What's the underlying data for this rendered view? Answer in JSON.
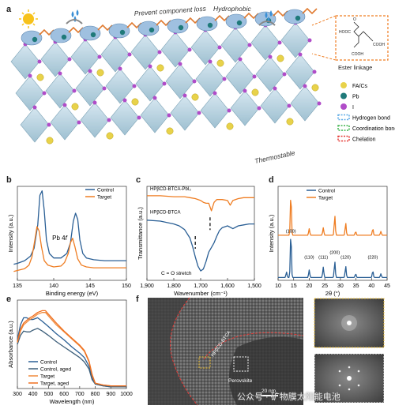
{
  "panels": {
    "a": {
      "letter": "a",
      "labels": {
        "prevent": "Prevent component loss",
        "hydrophobic": "Hydrophobic",
        "thermostable": "Thermostable"
      },
      "inset": {
        "title": "Ester linkage",
        "groups": [
          "HOOC",
          "COOH",
          "COOH",
          "O"
        ]
      },
      "legend": [
        {
          "label": "FA/Cs",
          "color": "#e8d24a"
        },
        {
          "label": "Pb",
          "color": "#1f7a7a"
        },
        {
          "label": "I",
          "color": "#b04cc8"
        },
        {
          "label": "Hydrogen bond",
          "color": "#5aa9e6"
        },
        {
          "label": "Coordination bond",
          "color": "#3cb44b"
        },
        {
          "label": "Chelation",
          "color": "#e53935"
        }
      ]
    },
    "b": {
      "letter": "b",
      "annotation": "Pb 4",
      "annotation_sub": "f"
    },
    "c": {
      "letter": "c",
      "annotation": "C = O stretch"
    },
    "d": {
      "letter": "d"
    },
    "e": {
      "letter": "e"
    },
    "f": {
      "letter": "f",
      "labels": {
        "molecule": "HPβCD-BTCA",
        "perovskite": "Perovskite",
        "scale": "20 nm"
      }
    }
  },
  "watermark": {
    "text": "公众号 · 矿物膜太阳能电池",
    "highlight": "能电池"
  },
  "chart_data": [
    {
      "panel": "b",
      "type": "line",
      "xlabel": "Binding energy (eV)",
      "ylabel": "Intensity (a.u.)",
      "xlim": [
        135,
        150
      ],
      "xticks": [
        135,
        140,
        145,
        150
      ],
      "reversed_x": false,
      "legend_position": "top-right",
      "series": [
        {
          "name": "Control",
          "color": "#2a5f95",
          "x": [
            134.5,
            135,
            136,
            136.8,
            137.3,
            137.8,
            138.1,
            138.4,
            138.7,
            139,
            139.4,
            140,
            141,
            141.8,
            142.3,
            142.7,
            143,
            143.3,
            143.6,
            144,
            144.5,
            145.5,
            147,
            148.5,
            150
          ],
          "y": [
            0.18,
            0.19,
            0.22,
            0.27,
            0.36,
            0.62,
            0.95,
            1.0,
            0.78,
            0.45,
            0.3,
            0.25,
            0.25,
            0.3,
            0.42,
            0.66,
            0.75,
            0.68,
            0.45,
            0.3,
            0.25,
            0.23,
            0.22,
            0.22,
            0.22
          ]
        },
        {
          "name": "Target",
          "color": "#ef7d22",
          "x": [
            134.5,
            135,
            136,
            136.6,
            137,
            137.4,
            137.7,
            138,
            138.3,
            138.7,
            139.2,
            140,
            141,
            141.5,
            142,
            142.3,
            142.6,
            142.9,
            143.3,
            143.8,
            144.5,
            145.5,
            147,
            148.5,
            150
          ],
          "y": [
            0.1,
            0.11,
            0.13,
            0.17,
            0.26,
            0.45,
            0.6,
            0.55,
            0.38,
            0.22,
            0.17,
            0.15,
            0.16,
            0.2,
            0.3,
            0.42,
            0.47,
            0.38,
            0.24,
            0.17,
            0.15,
            0.14,
            0.14,
            0.14,
            0.14
          ]
        }
      ]
    },
    {
      "panel": "c",
      "type": "line",
      "xlabel": "Wavenumber (cm⁻¹)",
      "ylabel": "Transmittance (a.u.)",
      "xlim": [
        1900,
        1500
      ],
      "xticks": [
        1900,
        1800,
        1700,
        1600,
        1500
      ],
      "xtick_labels": [
        "1,900",
        "1,800",
        "1,700",
        "1,600",
        "1,500"
      ],
      "reversed_x": true,
      "series": [
        {
          "name": "HPβCD-BTCA-PbI₂",
          "color": "#ef7d22",
          "x": [
            1900,
            1850,
            1800,
            1760,
            1740,
            1720,
            1700,
            1690,
            1680,
            1670,
            1660,
            1650,
            1640,
            1620,
            1600,
            1590,
            1580,
            1560,
            1540,
            1520,
            1500
          ],
          "y": [
            0.9,
            0.9,
            0.89,
            0.89,
            0.88,
            0.87,
            0.85,
            0.83,
            0.82,
            0.82,
            0.74,
            0.83,
            0.86,
            0.86,
            0.85,
            0.8,
            0.85,
            0.87,
            0.88,
            0.88,
            0.88
          ]
        },
        {
          "name": "HPβCD-BTCA",
          "color": "#2a5f95",
          "x": [
            1900,
            1850,
            1800,
            1780,
            1760,
            1740,
            1730,
            1720,
            1710,
            1700,
            1690,
            1680,
            1670,
            1660,
            1650,
            1640,
            1630,
            1620,
            1600,
            1580,
            1560,
            1540,
            1520,
            1500
          ],
          "y": [
            0.64,
            0.63,
            0.6,
            0.58,
            0.54,
            0.45,
            0.36,
            0.25,
            0.15,
            0.1,
            0.12,
            0.2,
            0.3,
            0.35,
            0.4,
            0.47,
            0.53,
            0.56,
            0.58,
            0.55,
            0.58,
            0.59,
            0.6,
            0.6
          ]
        }
      ],
      "markers": [
        {
          "x": 1720,
          "y": 0.42,
          "color": "#111"
        },
        {
          "x": 1665,
          "y": 0.62,
          "color": "#111"
        }
      ]
    },
    {
      "panel": "d",
      "type": "line",
      "xlabel": "2θ (°)",
      "ylabel": "Intensity (a.u.)",
      "xlim": [
        10,
        45
      ],
      "xticks": [
        10,
        15,
        20,
        25,
        30,
        35,
        40,
        45
      ],
      "reversed_x": false,
      "legend_position": "top-right",
      "peak_labels": [
        {
          "x": 14.1,
          "label": "(100)"
        },
        {
          "x": 20.0,
          "label": "(110)"
        },
        {
          "x": 24.5,
          "label": "(111)"
        },
        {
          "x": 28.2,
          "label": "(200)"
        },
        {
          "x": 31.7,
          "label": "(120)"
        },
        {
          "x": 40.4,
          "label": "(220)"
        }
      ],
      "series": [
        {
          "name": "Control",
          "color": "#2a5f95",
          "peaks": [
            [
              12.7,
              0.06
            ],
            [
              14.1,
              0.48
            ],
            [
              20.0,
              0.08
            ],
            [
              24.5,
              0.11
            ],
            [
              28.2,
              0.17
            ],
            [
              31.7,
              0.12
            ],
            [
              34.9,
              0.04
            ],
            [
              40.4,
              0.07
            ],
            [
              43.0,
              0.04
            ]
          ]
        },
        {
          "name": "Target",
          "color": "#ef7d22",
          "peaks": [
            [
              14.1,
              0.44
            ],
            [
              20.0,
              0.07
            ],
            [
              24.5,
              0.08
            ],
            [
              28.2,
              0.21
            ],
            [
              31.7,
              0.13
            ],
            [
              34.9,
              0.04
            ],
            [
              40.4,
              0.07
            ],
            [
              43.0,
              0.04
            ]
          ]
        }
      ]
    },
    {
      "panel": "e",
      "type": "line",
      "xlabel": "Wavelength (nm)",
      "ylabel": "Absorbance (a.u.)",
      "xlim": [
        300,
        1000
      ],
      "xticks": [
        300,
        400,
        500,
        600,
        700,
        800,
        900,
        1000
      ],
      "reversed_x": false,
      "legend_position": "bottom-left",
      "series": [
        {
          "name": "Control",
          "color": "#2a5f95",
          "x": [
            300,
            320,
            340,
            360,
            380,
            400,
            430,
            460,
            500,
            550,
            600,
            650,
            700,
            730,
            760,
            780,
            800,
            850,
            900,
            1000
          ],
          "y": [
            0.55,
            0.72,
            0.8,
            0.8,
            0.78,
            0.78,
            0.8,
            0.76,
            0.7,
            0.62,
            0.55,
            0.47,
            0.4,
            0.35,
            0.25,
            0.12,
            0.05,
            0.03,
            0.02,
            0.02
          ]
        },
        {
          "name": "Control, aged",
          "color": "#3d5f7a",
          "x": [
            300,
            320,
            340,
            360,
            380,
            400,
            430,
            460,
            500,
            550,
            600,
            650,
            700,
            730,
            760,
            780,
            800,
            850,
            900,
            1000
          ],
          "y": [
            0.5,
            0.6,
            0.65,
            0.64,
            0.64,
            0.66,
            0.68,
            0.65,
            0.6,
            0.53,
            0.47,
            0.41,
            0.35,
            0.3,
            0.22,
            0.1,
            0.05,
            0.03,
            0.02,
            0.02
          ]
        },
        {
          "name": "Target",
          "color": "#f08a3c",
          "x": [
            300,
            320,
            340,
            360,
            380,
            400,
            430,
            460,
            480,
            500,
            550,
            600,
            650,
            700,
            730,
            760,
            780,
            800,
            850,
            900,
            1000
          ],
          "y": [
            0.52,
            0.65,
            0.72,
            0.75,
            0.78,
            0.8,
            0.84,
            0.86,
            0.86,
            0.82,
            0.72,
            0.64,
            0.56,
            0.48,
            0.42,
            0.3,
            0.15,
            0.06,
            0.04,
            0.03,
            0.03
          ]
        },
        {
          "name": "Target, aged",
          "color": "#f07020",
          "x": [
            300,
            320,
            340,
            360,
            380,
            400,
            430,
            460,
            480,
            500,
            550,
            600,
            650,
            700,
            730,
            760,
            780,
            800,
            850,
            900,
            1000
          ],
          "y": [
            0.53,
            0.67,
            0.74,
            0.77,
            0.8,
            0.82,
            0.86,
            0.88,
            0.88,
            0.84,
            0.74,
            0.65,
            0.57,
            0.49,
            0.43,
            0.31,
            0.16,
            0.06,
            0.04,
            0.03,
            0.03
          ]
        }
      ]
    }
  ]
}
